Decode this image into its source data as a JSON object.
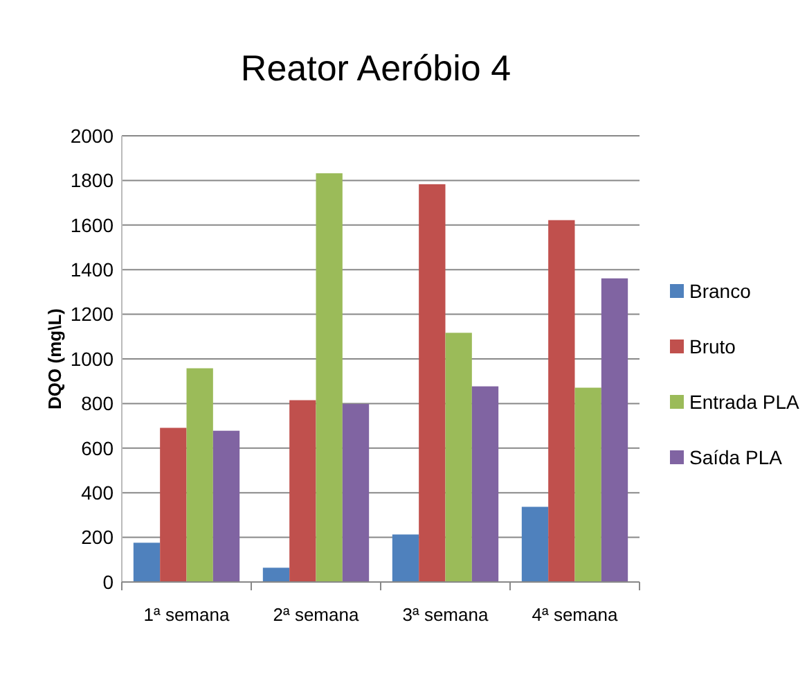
{
  "chart_data": {
    "type": "bar",
    "title": "Reator Aeróbio 4",
    "ylabel": "DQO (mg\\L)",
    "categories": [
      "1ª semana",
      "2ª semana",
      "3ª semana",
      "4ª semana"
    ],
    "series": [
      {
        "name": "Branco",
        "color": "#4f81bd",
        "values": [
          176,
          64,
          213,
          337
        ]
      },
      {
        "name": "Bruto",
        "color": "#c0504d",
        "values": [
          691,
          815,
          1783,
          1622
        ]
      },
      {
        "name": "Entrada PLA",
        "color": "#9bbb59",
        "values": [
          958,
          1832,
          1117,
          871
        ]
      },
      {
        "name": "Saída PLA",
        "color": "#8064a2",
        "values": [
          678,
          798,
          877,
          1361
        ]
      }
    ],
    "ylim": [
      0,
      2000
    ],
    "yticks": [
      0,
      200,
      400,
      600,
      800,
      1000,
      1200,
      1400,
      1600,
      1800,
      2000
    ],
    "grid": "y",
    "legend": "right"
  }
}
